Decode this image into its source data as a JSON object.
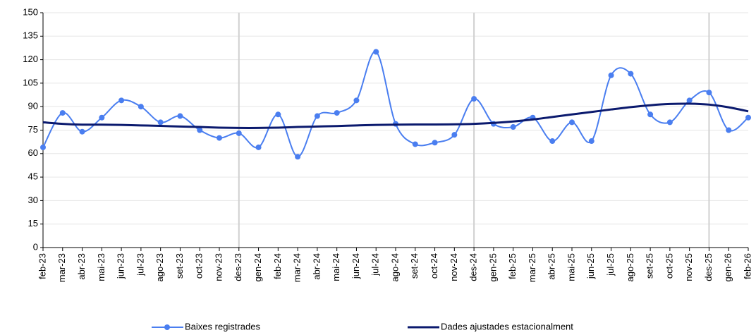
{
  "chart_data": {
    "type": "line",
    "categories": [
      "feb-23",
      "mar-23",
      "abr-23",
      "mai-23",
      "jun-23",
      "jul-23",
      "ago-23",
      "set-23",
      "oct-23",
      "nov-23",
      "des-23",
      "gen-24",
      "feb-24",
      "mar-24",
      "abr-24",
      "mai-24",
      "jun-24",
      "jul-24",
      "ago-24",
      "set-24",
      "oct-24",
      "nov-24",
      "des-24",
      "gen-25",
      "feb-25",
      "mar-25",
      "abr-25",
      "mai-25",
      "jun-25",
      "jul-25",
      "ago-25",
      "set-25",
      "oct-25",
      "nov-25",
      "des-25",
      "gen-26",
      "feb-26"
    ],
    "series": [
      {
        "name": "Baixes registrades",
        "color": "#4a7ef0",
        "markers": true,
        "values": [
          64,
          86,
          74,
          83,
          94,
          90,
          80,
          84,
          75,
          70,
          73,
          64,
          85,
          58,
          84,
          86,
          94,
          125,
          79,
          66,
          67,
          72,
          95,
          79,
          77,
          83,
          68,
          80,
          68,
          110,
          111,
          85,
          80,
          94,
          99,
          75,
          83
        ]
      },
      {
        "name": "Dades ajustades estacionalment",
        "color": "#0b1a6e",
        "markers": false,
        "values": [
          80,
          79,
          78.5,
          78.5,
          78.3,
          78,
          77.7,
          77.3,
          77,
          76.6,
          76.4,
          76.4,
          76.6,
          77,
          77.3,
          77.6,
          78,
          78.3,
          78.5,
          78.6,
          78.6,
          78.7,
          79,
          79.6,
          80.5,
          81.8,
          83.4,
          85,
          86.6,
          88.2,
          89.7,
          90.9,
          91.7,
          91.9,
          91.3,
          89.6,
          87
        ]
      }
    ],
    "year_lines": [
      "des-23",
      "des-24",
      "des-25"
    ],
    "ylim": [
      0,
      150
    ],
    "yticks": [
      0,
      15,
      30,
      45,
      60,
      75,
      90,
      105,
      120,
      135,
      150
    ],
    "grid": true,
    "smooth": true,
    "legend": "bottom"
  }
}
